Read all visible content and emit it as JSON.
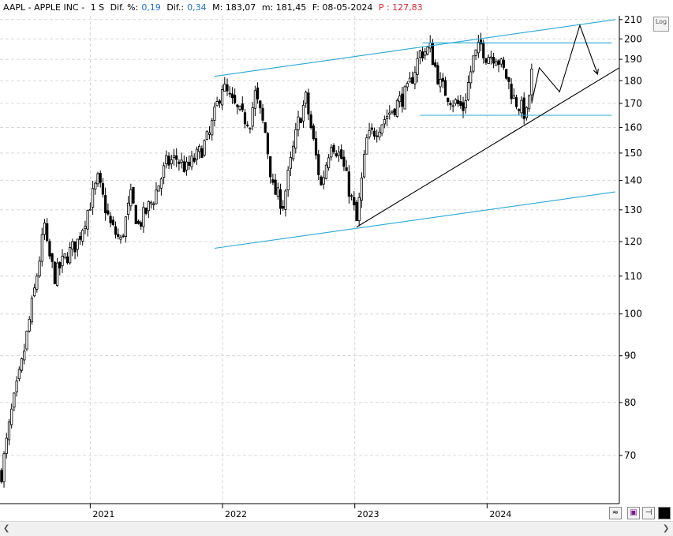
{
  "header": {
    "symbol": "AAPL - APPLE INC -",
    "timeframe": "1 S",
    "dif_pct_label": "Dif. %:",
    "dif_pct_value": "0,19",
    "dif_label": "Dif.:",
    "dif_value": "0,34",
    "max_label": "M: 183,07",
    "min_label": "m: 181,45",
    "date_label": "F: 08-05-2024",
    "p_label": "P : 127,83"
  },
  "log_button": "Log",
  "chart_data": {
    "type": "candlestick",
    "scale": "log",
    "ylim": [
      62,
      212
    ],
    "y_ticks": [
      70,
      80,
      90,
      100,
      110,
      120,
      130,
      140,
      150,
      160,
      170,
      180,
      190,
      200,
      210
    ],
    "x_range": [
      "2020-04-27",
      "2024-12-31"
    ],
    "x_ticks": [
      {
        "label": "2021",
        "date": "2021-01-01"
      },
      {
        "label": "2022",
        "date": "2022-01-01"
      },
      {
        "label": "2023",
        "date": "2023-01-01"
      },
      {
        "label": "2024",
        "date": "2024-01-01"
      }
    ],
    "close_path": [
      [
        "2020-05-01",
        67
      ],
      [
        "2020-05-29",
        78
      ],
      [
        "2020-06-26",
        88
      ],
      [
        "2020-07-31",
        106
      ],
      [
        "2020-08-28",
        125
      ],
      [
        "2020-09-04",
        118
      ],
      [
        "2020-09-25",
        110
      ],
      [
        "2020-10-23",
        115
      ],
      [
        "2020-11-27",
        120
      ],
      [
        "2020-12-31",
        132
      ],
      [
        "2021-01-22",
        140
      ],
      [
        "2021-02-26",
        125
      ],
      [
        "2021-03-26",
        120
      ],
      [
        "2021-04-23",
        134
      ],
      [
        "2021-05-14",
        125
      ],
      [
        "2021-06-25",
        134
      ],
      [
        "2021-07-30",
        146
      ],
      [
        "2021-08-27",
        148
      ],
      [
        "2021-09-24",
        144
      ],
      [
        "2021-10-29",
        150
      ],
      [
        "2021-11-26",
        157
      ],
      [
        "2021-12-31",
        178
      ],
      [
        "2022-01-28",
        170
      ],
      [
        "2022-02-25",
        164
      ],
      [
        "2022-03-18",
        163
      ],
      [
        "2022-04-01",
        174
      ],
      [
        "2022-04-29",
        158
      ],
      [
        "2022-05-20",
        137
      ],
      [
        "2022-06-17",
        132
      ],
      [
        "2022-07-29",
        162
      ],
      [
        "2022-08-19",
        172
      ],
      [
        "2022-09-30",
        138
      ],
      [
        "2022-10-28",
        155
      ],
      [
        "2022-11-25",
        148
      ],
      [
        "2022-12-30",
        130
      ],
      [
        "2023-01-06",
        126
      ],
      [
        "2023-02-03",
        155
      ],
      [
        "2023-03-31",
        165
      ],
      [
        "2023-04-28",
        170
      ],
      [
        "2023-05-26",
        175
      ],
      [
        "2023-06-30",
        193
      ],
      [
        "2023-07-28",
        195
      ],
      [
        "2023-08-25",
        178
      ],
      [
        "2023-09-29",
        171
      ],
      [
        "2023-10-27",
        168
      ],
      [
        "2023-11-24",
        190
      ],
      [
        "2023-12-15",
        197
      ],
      [
        "2023-12-29",
        192
      ],
      [
        "2024-01-26",
        192
      ],
      [
        "2024-02-23",
        182
      ],
      [
        "2024-03-15",
        172
      ],
      [
        "2024-04-19",
        165
      ],
      [
        "2024-05-03",
        183
      ]
    ],
    "lines": [
      {
        "name": "channel-upper",
        "color": "#28a8d6",
        "points": [
          [
            "2021-12-10",
            182
          ],
          [
            "2024-12-20",
            210
          ]
        ]
      },
      {
        "name": "channel-lower",
        "color": "#28a8d6",
        "points": [
          [
            "2021-12-10",
            118
          ],
          [
            "2024-12-20",
            136
          ]
        ]
      },
      {
        "name": "resistance",
        "color": "#28a8d6",
        "points": [
          [
            "2023-07-07",
            198
          ],
          [
            "2024-12-10",
            198
          ]
        ]
      },
      {
        "name": "support",
        "color": "#28a8d6",
        "points": [
          [
            "2023-06-30",
            165
          ],
          [
            "2024-12-10",
            165
          ]
        ]
      },
      {
        "name": "uptrend",
        "color": "#000000",
        "points": [
          [
            "2023-01-06",
            124.5
          ],
          [
            "2024-12-31",
            186
          ]
        ]
      },
      {
        "name": "projection",
        "color": "#000000",
        "points": [
          [
            "2024-05-03",
            170
          ],
          [
            "2024-05-24",
            186
          ],
          [
            "2024-07-19",
            175
          ],
          [
            "2024-09-13",
            207
          ],
          [
            "2024-11-01",
            183
          ]
        ]
      }
    ]
  }
}
